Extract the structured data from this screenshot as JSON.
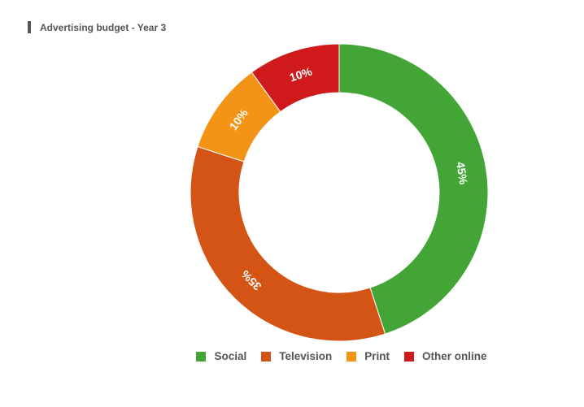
{
  "chart_data": {
    "type": "pie",
    "variant": "donut",
    "title": "Advertising budget - Year 3",
    "slices": [
      {
        "label": "Social",
        "value": 45,
        "display": "45%",
        "color": "#43a535"
      },
      {
        "label": "Television",
        "value": 35,
        "display": "35%",
        "color": "#d35415"
      },
      {
        "label": "Print",
        "value": 10,
        "display": "10%",
        "color": "#f39417"
      },
      {
        "label": "Other online",
        "value": 10,
        "display": "10%",
        "color": "#d0191b"
      }
    ],
    "legend_position": "bottom"
  }
}
